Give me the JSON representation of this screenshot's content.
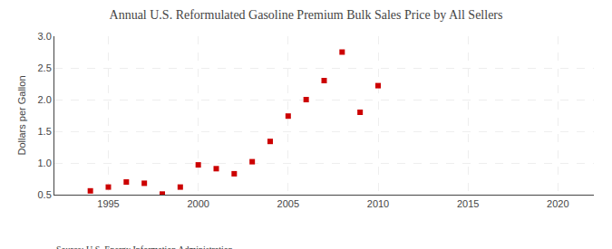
{
  "chart_data": {
    "type": "scatter",
    "title": "Annual U.S. Reformulated Gasoline Premium Bulk Sales Price by All Sellers",
    "ylabel": "Dollars per Gallon",
    "annotations": [
      "Source: U.S. Energy Information Administration"
    ],
    "x": [
      1994,
      1995,
      1996,
      1997,
      1998,
      1999,
      2000,
      2001,
      2002,
      2003,
      2004,
      2005,
      2006,
      2007,
      2008,
      2009,
      2010
    ],
    "values": [
      0.56,
      0.62,
      0.7,
      0.68,
      0.51,
      0.62,
      0.97,
      0.91,
      0.83,
      1.02,
      1.34,
      1.74,
      2.0,
      2.3,
      2.75,
      1.8,
      2.22
    ],
    "color": "#cc0000",
    "marker": "square",
    "xlim": [
      1992,
      2022
    ],
    "ylim": [
      0.5,
      3.0
    ],
    "xticks": [
      1995,
      2000,
      2005,
      2010,
      2015,
      2020
    ],
    "yticks": [
      {
        "value": 0.5,
        "label": "0.5"
      },
      {
        "value": 1.0,
        "label": "1.0"
      },
      1.5,
      {
        "value": 2.0,
        "label": "2.0"
      },
      2.5,
      {
        "value": 3.0,
        "label": "3.0"
      }
    ],
    "grid": true
  }
}
